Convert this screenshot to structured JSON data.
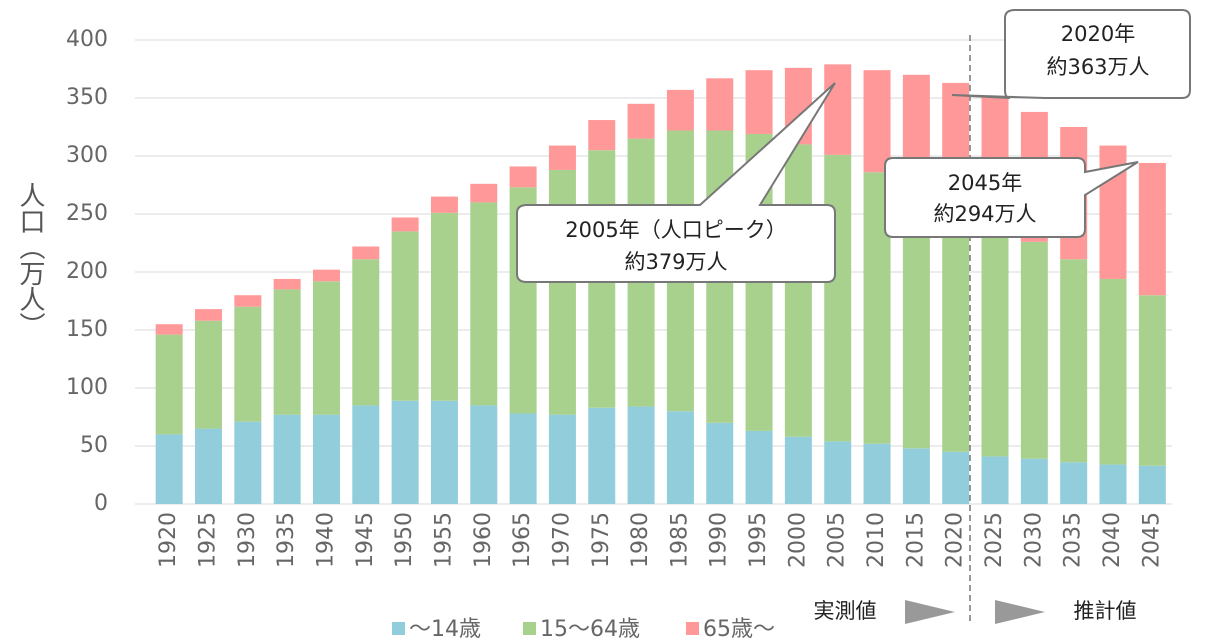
{
  "chart_data": {
    "type": "stacked_bar",
    "y_label": "人口（万人）",
    "categories": [
      "1920",
      "1925",
      "1930",
      "1935",
      "1940",
      "1945",
      "1950",
      "1955",
      "1960",
      "1965",
      "1970",
      "1975",
      "1980",
      "1985",
      "1990",
      "1995",
      "2000",
      "2005",
      "2010",
      "2015",
      "2020",
      "2025",
      "2030",
      "2035",
      "2040",
      "2045"
    ],
    "series": [
      {
        "name": "～14歳",
        "color": "#92cddc",
        "values": [
          60,
          65,
          71,
          77,
          77,
          85,
          89,
          89,
          85,
          78,
          77,
          83,
          84,
          80,
          70,
          63,
          58,
          54,
          52,
          48,
          45,
          41,
          39,
          36,
          34,
          33
        ]
      },
      {
        "name": "15～64歳",
        "color": "#a9d18e",
        "values": [
          86,
          93,
          99,
          108,
          115,
          126,
          146,
          162,
          175,
          195,
          211,
          222,
          231,
          242,
          252,
          256,
          252,
          247,
          234,
          224,
          217,
          209,
          187,
          175,
          160,
          147
        ]
      },
      {
        "name": "65歳～",
        "color": "#ff9999",
        "values": [
          9,
          10,
          10,
          9,
          10,
          11,
          12,
          14,
          16,
          18,
          21,
          26,
          30,
          35,
          45,
          55,
          66,
          78,
          88,
          98,
          101,
          101,
          112,
          114,
          115,
          114
        ]
      }
    ],
    "ylim": [
      0,
      400
    ],
    "yticks": [
      0,
      50,
      100,
      150,
      200,
      250,
      300,
      350,
      400
    ],
    "grid": true,
    "annotations": [
      {
        "lines": [
          "2020年",
          "約363万人"
        ]
      },
      {
        "lines": [
          "2005年（人口ピーク）",
          "約379万人"
        ]
      },
      {
        "lines": [
          "2045年",
          "約294万人"
        ]
      }
    ],
    "period_labels": [
      "実測値",
      "推計値"
    ]
  }
}
